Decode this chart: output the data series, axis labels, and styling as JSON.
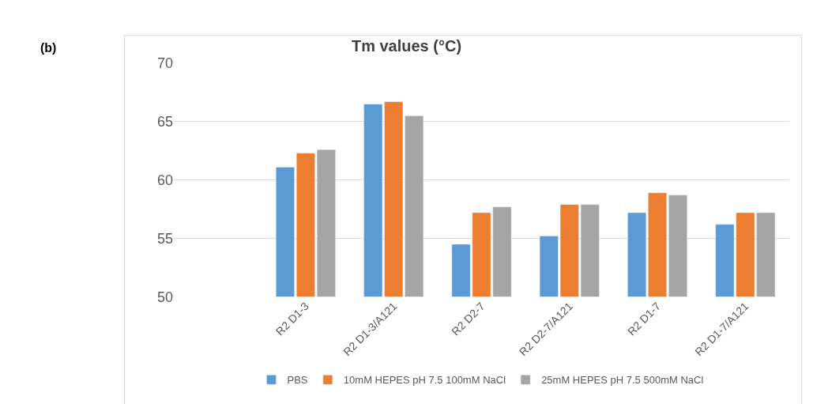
{
  "chart_data": {
    "type": "bar",
    "title": "Tm values (°C)",
    "annotations": [
      "(b)"
    ],
    "categories": [
      null,
      "R2 D1-3",
      "R2 D1-3/A121",
      "R2 D2-7",
      "R2 D2-7/A121",
      "R2 D1-7",
      "R2 D1-7/A121"
    ],
    "series": [
      {
        "name": "PBS",
        "color": "#5b9bd5",
        "values": [
          null,
          61.1,
          66.5,
          54.5,
          55.2,
          57.2,
          56.2
        ]
      },
      {
        "name": "10mM HEPES pH 7.5 100mM NaCl",
        "color": "#ed7d31",
        "values": [
          null,
          62.3,
          66.7,
          57.2,
          57.9,
          58.9,
          57.2
        ]
      },
      {
        "name": "25mM HEPES pH 7.5 500mM NaCl",
        "color": "#a5a5a5",
        "values": [
          null,
          62.6,
          65.5,
          57.7,
          57.9,
          58.7,
          57.2
        ]
      }
    ],
    "ylim": [
      50,
      70
    ],
    "yticks": [
      50,
      55,
      60,
      65,
      70
    ],
    "grid": "y",
    "legend": "bottom"
  }
}
